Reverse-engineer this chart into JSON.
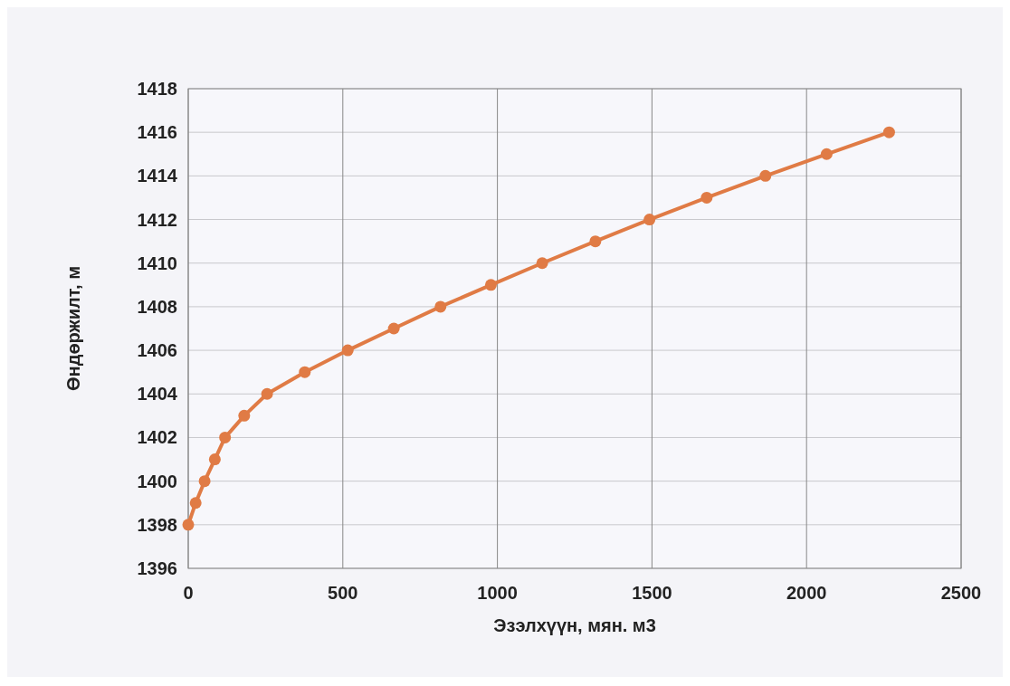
{
  "chart_data": {
    "type": "line",
    "xlabel": "Эзэлхүүн, мян. м3",
    "ylabel": "Өндөржилт, м",
    "x": [
      0,
      24,
      53,
      86,
      119,
      181,
      255,
      377,
      516,
      665,
      816,
      979,
      1145,
      1317,
      1492,
      1677,
      1867,
      2065,
      2267
    ],
    "series": [
      {
        "color": "#e07b45",
        "values": [
          1398,
          1399,
          1400,
          1401,
          1402,
          1403,
          1404,
          1405,
          1406,
          1407,
          1408,
          1409,
          1410,
          1411,
          1412,
          1413,
          1414,
          1415,
          1416
        ]
      }
    ],
    "xlim": [
      0,
      2500
    ],
    "xticks": [
      0,
      500,
      1000,
      1500,
      2000,
      2500
    ],
    "ylim": [
      1396,
      1418
    ],
    "yticks": [
      1396,
      1398,
      1400,
      1402,
      1404,
      1406,
      1408,
      1410,
      1412,
      1414,
      1416,
      1418
    ],
    "grid": true,
    "marker": "circle",
    "line_style": "solid"
  }
}
